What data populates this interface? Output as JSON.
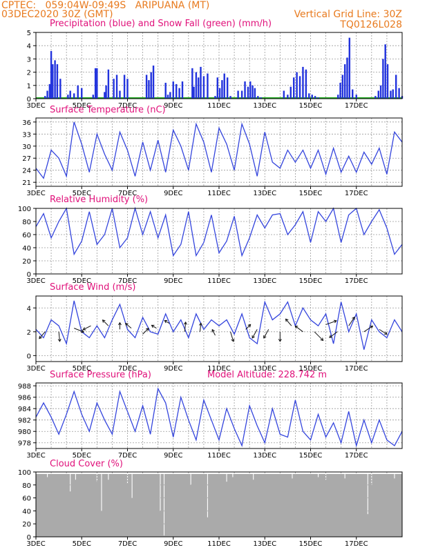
{
  "header": {
    "line1_left": "CPTEC:   059:04W-09:49S   ARIPUANA (MT)",
    "line2_left": "03DEC2020 30Z (GMT)",
    "line2_right": "Vertical Grid Line: 30Z",
    "line3_right": "TQ0126L028",
    "color": "#e87a1e"
  },
  "colors": {
    "title": "#e0107a",
    "precip": "#2233dd",
    "snow": "#22aa22",
    "line": "#3344dd",
    "cloud": "#aaaaaa",
    "arrow": "#111111",
    "grid": "#999999"
  },
  "chart_data": [
    {
      "type": "bar",
      "title": "Precipitation (blue) and Snow Fall (green) (mm/h)",
      "ylim": [
        0,
        5
      ],
      "yticks": [
        "0",
        "1",
        "2",
        "3",
        "4",
        "5"
      ],
      "xticks": [
        "3DEC",
        "5DEC",
        "7DEC",
        "9DEC",
        "11DEC",
        "13DEC",
        "15DEC",
        "17DEC"
      ],
      "x_hours": [
        1.2,
        1.5,
        1.8,
        2.0,
        2.2,
        2.5,
        2.8,
        3.2,
        4.2,
        4.5,
        5.0,
        5.5,
        6.0,
        7.5,
        7.8,
        8.0,
        9.0,
        9.2,
        9.5,
        10.2,
        10.6,
        11.0,
        11.6,
        12.0,
        14.5,
        14.8,
        15.1,
        15.4,
        17.0,
        17.3,
        17.6,
        18.0,
        18.4,
        18.8,
        19.2,
        20.5,
        20.7,
        21.0,
        21.3,
        21.6,
        22.0,
        22.5,
        23.5,
        23.8,
        24.1,
        24.4,
        24.7,
        25.1,
        25.5,
        26.5,
        27.0,
        27.4,
        27.8,
        28.1,
        28.4,
        28.7,
        29.1,
        29.5,
        32.5,
        33.0,
        33.4,
        33.8,
        34.2,
        34.6,
        35.0,
        35.4,
        35.8,
        36.2,
        36.6,
        37.0,
        39.6,
        39.9,
        40.2,
        40.5,
        40.8,
        41.1,
        41.5,
        42.0,
        44.5,
        44.9,
        45.2,
        45.5,
        45.8,
        46.1,
        46.5,
        46.8,
        47.2,
        47.6,
        48.0
      ],
      "values": [
        0.2,
        0.6,
        1.1,
        3.6,
        2.6,
        2.9,
        2.6,
        1.5,
        0.3,
        0.6,
        0.4,
        1.0,
        0.8,
        0.3,
        2.3,
        2.3,
        0.5,
        1.0,
        2.2,
        1.5,
        1.8,
        0.6,
        1.8,
        1.5,
        1.8,
        1.4,
        2.0,
        2.5,
        1.2,
        0.3,
        0.5,
        1.3,
        1.1,
        0.8,
        1.3,
        2.3,
        0.9,
        2.0,
        1.6,
        2.4,
        1.7,
        1.9,
        0.2,
        1.6,
        0.8,
        1.4,
        1.9,
        1.6,
        0.2,
        0.6,
        0.6,
        1.3,
        0.9,
        1.3,
        1.0,
        0.8,
        0.2,
        0.1,
        0.6,
        0.3,
        0.9,
        1.6,
        2.0,
        1.7,
        2.4,
        2.2,
        0.4,
        0.3,
        0.2,
        0.1,
        0.3,
        1.2,
        1.8,
        2.6,
        3.1,
        4.6,
        0.7,
        0.3,
        0.2,
        0.6,
        1.0,
        3.0,
        4.1,
        2.6,
        0.6,
        0.7,
        1.8,
        0.8,
        0.2
      ]
    },
    {
      "type": "line",
      "title": "Surface Temperature (nC)",
      "ylim": [
        20,
        37
      ],
      "yticks": [
        "21",
        "24",
        "27",
        "30",
        "33",
        "36"
      ],
      "xticks": [
        "3DEC",
        "5DEC",
        "7DEC",
        "9DEC",
        "11DEC",
        "13DEC",
        "15DEC",
        "17DEC"
      ],
      "x_hours": [
        0,
        1,
        2,
        3,
        4,
        5,
        6,
        7,
        8,
        9,
        10,
        11,
        12,
        13,
        14,
        15,
        16,
        17,
        18,
        19,
        20,
        21,
        22,
        23,
        24,
        25,
        26,
        27,
        28,
        29,
        30,
        31,
        32,
        33,
        34,
        35,
        36,
        37,
        38,
        39,
        40,
        41,
        42,
        43,
        44,
        45,
        46,
        47,
        48
      ],
      "values": [
        24.5,
        22.0,
        29.0,
        27.0,
        22.5,
        36.0,
        30.5,
        23.5,
        33.0,
        28.0,
        24.0,
        33.5,
        29.0,
        22.5,
        31.0,
        24.0,
        31.5,
        23.5,
        34.0,
        30.0,
        24.0,
        35.5,
        31.0,
        23.5,
        34.5,
        30.5,
        24.0,
        35.5,
        30.5,
        22.5,
        33.5,
        26.0,
        24.5,
        29.0,
        26.0,
        29.0,
        24.5,
        29.0,
        23.0,
        29.5,
        23.5,
        27.5,
        23.5,
        28.5,
        25.5,
        29.5,
        23.0,
        33.5,
        31.0
      ]
    },
    {
      "type": "line",
      "title": "Relative Humidity (%)",
      "ylim": [
        0,
        100
      ],
      "yticks": [
        "0",
        "20",
        "40",
        "60",
        "80",
        "100"
      ],
      "xticks": [
        "3DEC",
        "5DEC",
        "7DEC",
        "9DEC",
        "11DEC",
        "13DEC",
        "15DEC",
        "17DEC"
      ],
      "x_hours": [
        0,
        1,
        2,
        3,
        4,
        5,
        6,
        7,
        8,
        9,
        10,
        11,
        12,
        13,
        14,
        15,
        16,
        17,
        18,
        19,
        20,
        21,
        22,
        23,
        24,
        25,
        26,
        27,
        28,
        29,
        30,
        31,
        32,
        33,
        34,
        35,
        36,
        37,
        38,
        39,
        40,
        41,
        42,
        43,
        44,
        45,
        46,
        47,
        48
      ],
      "values": [
        72,
        92,
        55,
        80,
        100,
        30,
        50,
        95,
        45,
        60,
        100,
        40,
        55,
        100,
        60,
        95,
        55,
        90,
        28,
        45,
        95,
        28,
        48,
        90,
        32,
        50,
        88,
        28,
        55,
        90,
        70,
        90,
        92,
        60,
        75,
        95,
        48,
        95,
        80,
        100,
        48,
        90,
        100,
        60,
        80,
        98,
        70,
        30,
        45
      ]
    },
    {
      "type": "line",
      "title": "Surface Wind (m/s)",
      "ylim": [
        -0.5,
        5.0
      ],
      "yticks": [
        "0",
        "2",
        "4"
      ],
      "xticks": [
        "3DEC",
        "5DEC",
        "7DEC",
        "9DEC",
        "11DEC",
        "13DEC",
        "15DEC",
        "17DEC"
      ],
      "x_hours": [
        0,
        1,
        2,
        3,
        4,
        5,
        6,
        7,
        8,
        9,
        10,
        11,
        12,
        13,
        14,
        15,
        16,
        17,
        18,
        19,
        20,
        21,
        22,
        23,
        24,
        25,
        26,
        27,
        28,
        29,
        30,
        31,
        32,
        33,
        34,
        35,
        36,
        37,
        38,
        39,
        40,
        41,
        42,
        43,
        44,
        45,
        46,
        47,
        48
      ],
      "values": [
        2.2,
        1.5,
        3.0,
        2.5,
        1.0,
        4.6,
        2.0,
        1.5,
        2.5,
        1.5,
        3.0,
        4.3,
        2.2,
        1.5,
        3.2,
        2.0,
        1.8,
        3.5,
        2.0,
        3.0,
        1.5,
        3.5,
        2.2,
        3.0,
        2.5,
        3.0,
        1.8,
        3.5,
        1.5,
        1.0,
        4.5,
        3.0,
        3.5,
        4.5,
        2.5,
        4.0,
        3.0,
        2.5,
        3.5,
        1.0,
        4.5,
        2.0,
        3.5,
        0.5,
        3.0,
        2.0,
        1.5,
        3.0,
        2.0
      ],
      "arrows_x_hours": [
        1.2,
        3.0,
        5.0,
        7.2,
        9.5,
        11.0,
        12.5,
        14.0,
        15.8,
        17.5,
        19.5,
        21.5,
        23.5,
        25.5,
        27.5,
        29.0,
        30.5,
        32.0,
        33.5,
        35.0,
        36.5,
        38.0,
        39.5,
        41.0,
        43.0,
        45.0
      ],
      "arrows_y": [
        2.0,
        2.0,
        2.3,
        2.5,
        2.5,
        2.2,
        2.3,
        1.8,
        2.3,
        2.7,
        2.0,
        2.0,
        1.7,
        2.0,
        2.2,
        2.2,
        2.2,
        2.0,
        2.5,
        2.0,
        2.0,
        2.6,
        2.0,
        2.5,
        2.0,
        2.2
      ],
      "arrows_u": [
        -0.6,
        0.1,
        1.0,
        -0.8,
        -0.6,
        0.0,
        -0.6,
        0.6,
        -0.5,
        -0.5,
        0.1,
        0.1,
        -0.3,
        0.3,
        0.5,
        -0.5,
        -0.5,
        0.0,
        -0.6,
        -0.8,
        0.9,
        1.1,
        -0.8,
        0.6,
        0.9,
        0.8
      ],
      "arrows_v": [
        -0.7,
        -1.0,
        -0.4,
        -0.4,
        0.6,
        0.7,
        0.5,
        0.6,
        0.3,
        0.3,
        1.0,
        0.9,
        0.6,
        -1.0,
        0.5,
        -0.9,
        -0.9,
        -1.0,
        0.7,
        0.6,
        -0.9,
        0.4,
        -0.6,
        0.9,
        0.6,
        -0.5
      ]
    },
    {
      "type": "line",
      "title": "Surface Pressure (hPa)",
      "annotation": "Model Altitude: 228.742 m",
      "ylim": [
        977,
        988.5
      ],
      "yticks": [
        "978",
        "980",
        "982",
        "984",
        "986",
        "988"
      ],
      "xticks": [
        "3DEC",
        "5DEC",
        "7DEC",
        "9DEC",
        "11DEC",
        "13DEC",
        "15DEC",
        "17DEC"
      ],
      "x_hours": [
        0,
        1,
        2,
        3,
        4,
        5,
        6,
        7,
        8,
        9,
        10,
        11,
        12,
        13,
        14,
        15,
        16,
        17,
        18,
        19,
        20,
        21,
        22,
        23,
        24,
        25,
        26,
        27,
        28,
        29,
        30,
        31,
        32,
        33,
        34,
        35,
        36,
        37,
        38,
        39,
        40,
        41,
        42,
        43,
        44,
        45,
        46,
        47,
        48
      ],
      "values": [
        982.5,
        985.0,
        982.5,
        979.5,
        983.0,
        987.0,
        983.0,
        980.0,
        985.0,
        982.0,
        979.5,
        987.0,
        983.5,
        980.0,
        984.5,
        979.5,
        987.5,
        985.0,
        979.0,
        986.0,
        982.0,
        978.5,
        985.5,
        982.0,
        978.5,
        984.0,
        980.5,
        977.5,
        984.5,
        981.0,
        978.0,
        984.0,
        979.5,
        979.0,
        985.5,
        980.0,
        978.5,
        983.0,
        979.0,
        981.5,
        978.0,
        983.5,
        977.5,
        982.0,
        978.0,
        982.0,
        978.5,
        977.5,
        980.0
      ]
    },
    {
      "type": "bar",
      "title": "Cloud Cover (%)",
      "ylim": [
        0,
        100
      ],
      "yticks": [
        "0",
        "20",
        "40",
        "60",
        "80",
        "100"
      ],
      "xticks": [
        "3DEC",
        "5DEC",
        "7DEC",
        "9DEC",
        "11DEC",
        "13DEC",
        "15DEC",
        "17DEC"
      ],
      "baseline_percent": 97,
      "dips_x_hours": [
        1.5,
        4.5,
        5.2,
        8.0,
        8.6,
        9.5,
        12.0,
        12.6,
        16.3,
        16.8,
        20.3,
        22.5,
        25.0,
        25.8,
        28.5,
        33.6,
        37.0,
        38.0,
        40.5,
        43.5,
        44.0,
        47.0
      ],
      "dips_values": [
        92,
        70,
        88,
        85,
        40,
        88,
        82,
        60,
        40,
        2,
        80,
        30,
        85,
        92,
        88,
        90,
        92,
        88,
        90,
        35,
        80,
        90
      ]
    }
  ]
}
